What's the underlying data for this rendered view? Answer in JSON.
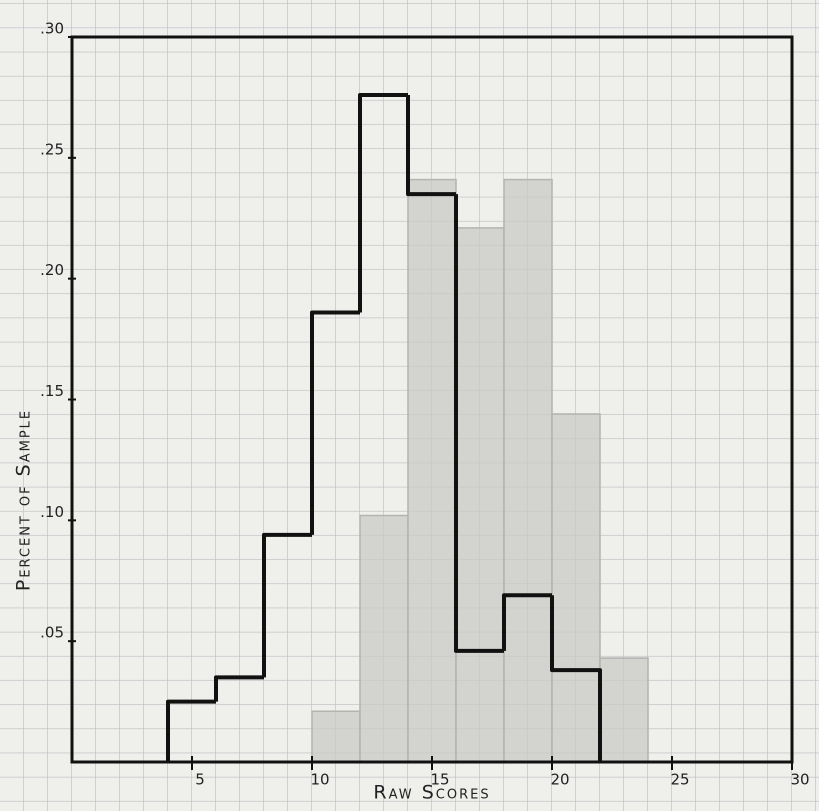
{
  "chart_data": {
    "type": "histogram",
    "x_label": "Raw Scores",
    "y_label": "Percent of Sample",
    "xlim": [
      0,
      30
    ],
    "xticks": [
      5,
      10,
      15,
      20,
      25,
      30
    ],
    "ylim": [
      0,
      0.3
    ],
    "yticks": [
      {
        "value": 0.05,
        "label": ".05"
      },
      {
        "value": 0.1,
        "label": ".10"
      },
      {
        "value": 0.15,
        "label": ".15"
      },
      {
        "value": 0.2,
        "label": ".20"
      },
      {
        "value": 0.25,
        "label": ".25"
      },
      {
        "value": 0.3,
        "label": ".30"
      }
    ],
    "series": [
      {
        "color": "#c9c9c6",
        "style": "filled",
        "bins": [
          10,
          12,
          14,
          16,
          18,
          20,
          22,
          24
        ],
        "values": [
          0.021,
          0.102,
          0.241,
          0.221,
          0.241,
          0.144,
          0.043
        ]
      },
      {
        "color": "#111111",
        "style": "outline",
        "bins": [
          4,
          6,
          8,
          10,
          12,
          14,
          16,
          18,
          20,
          22
        ],
        "values": [
          0.025,
          0.035,
          0.094,
          0.186,
          0.276,
          0.235,
          0.046,
          0.069,
          0.038
        ]
      }
    ]
  }
}
